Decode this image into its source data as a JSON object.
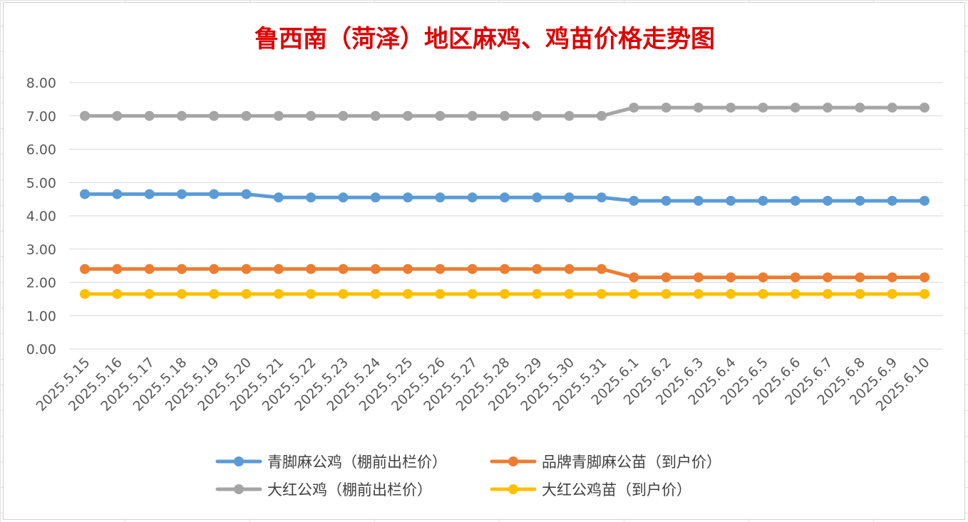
{
  "chart_data": {
    "type": "line",
    "title": "鲁西南（菏泽）地区麻鸡、鸡苗价格走势图",
    "xlabel": "",
    "ylabel": "",
    "ylim": [
      0,
      8
    ],
    "yticks": [
      "0.00",
      "1.00",
      "2.00",
      "3.00",
      "4.00",
      "5.00",
      "6.00",
      "7.00",
      "8.00"
    ],
    "grid": true,
    "legend_position": "bottom",
    "x": [
      "2025.5.15",
      "2025.5.16",
      "2025.5.17",
      "2025.5.18",
      "2025.5.19",
      "2025.5.20",
      "2025.5.21",
      "2025.5.22",
      "2025.5.23",
      "2025.5.24",
      "2025.5.25",
      "2025.5.26",
      "2025.5.27",
      "2025.5.28",
      "2025.5.29",
      "2025.5.30",
      "2025.5.31",
      "2025.6.1",
      "2025.6.2",
      "2025.6.3",
      "2025.6.4",
      "2025.6.5",
      "2025.6.6",
      "2025.6.7",
      "2025.6.8",
      "2025.6.9",
      "2025.6.10"
    ],
    "series": [
      {
        "name": "青脚麻公鸡（棚前出栏价）",
        "color": "#5b9bd5",
        "values": [
          4.65,
          4.65,
          4.65,
          4.65,
          4.65,
          4.65,
          4.55,
          4.55,
          4.55,
          4.55,
          4.55,
          4.55,
          4.55,
          4.55,
          4.55,
          4.55,
          4.55,
          4.45,
          4.45,
          4.45,
          4.45,
          4.45,
          4.45,
          4.45,
          4.45,
          4.45,
          4.45
        ]
      },
      {
        "name": "品牌青脚麻公苗（到户价）",
        "color": "#ed7d31",
        "values": [
          2.4,
          2.4,
          2.4,
          2.4,
          2.4,
          2.4,
          2.4,
          2.4,
          2.4,
          2.4,
          2.4,
          2.4,
          2.4,
          2.4,
          2.4,
          2.4,
          2.4,
          2.15,
          2.15,
          2.15,
          2.15,
          2.15,
          2.15,
          2.15,
          2.15,
          2.15,
          2.15
        ]
      },
      {
        "name": "大红公鸡（棚前出栏价）",
        "color": "#a5a5a5",
        "values": [
          7.0,
          7.0,
          7.0,
          7.0,
          7.0,
          7.0,
          7.0,
          7.0,
          7.0,
          7.0,
          7.0,
          7.0,
          7.0,
          7.0,
          7.0,
          7.0,
          7.0,
          7.25,
          7.25,
          7.25,
          7.25,
          7.25,
          7.25,
          7.25,
          7.25,
          7.25,
          7.25
        ]
      },
      {
        "name": "大红公鸡苗（到户价）",
        "color": "#ffc000",
        "values": [
          1.65,
          1.65,
          1.65,
          1.65,
          1.65,
          1.65,
          1.65,
          1.65,
          1.65,
          1.65,
          1.65,
          1.65,
          1.65,
          1.65,
          1.65,
          1.65,
          1.65,
          1.65,
          1.65,
          1.65,
          1.65,
          1.65,
          1.65,
          1.65,
          1.65,
          1.65,
          1.65
        ]
      }
    ]
  }
}
